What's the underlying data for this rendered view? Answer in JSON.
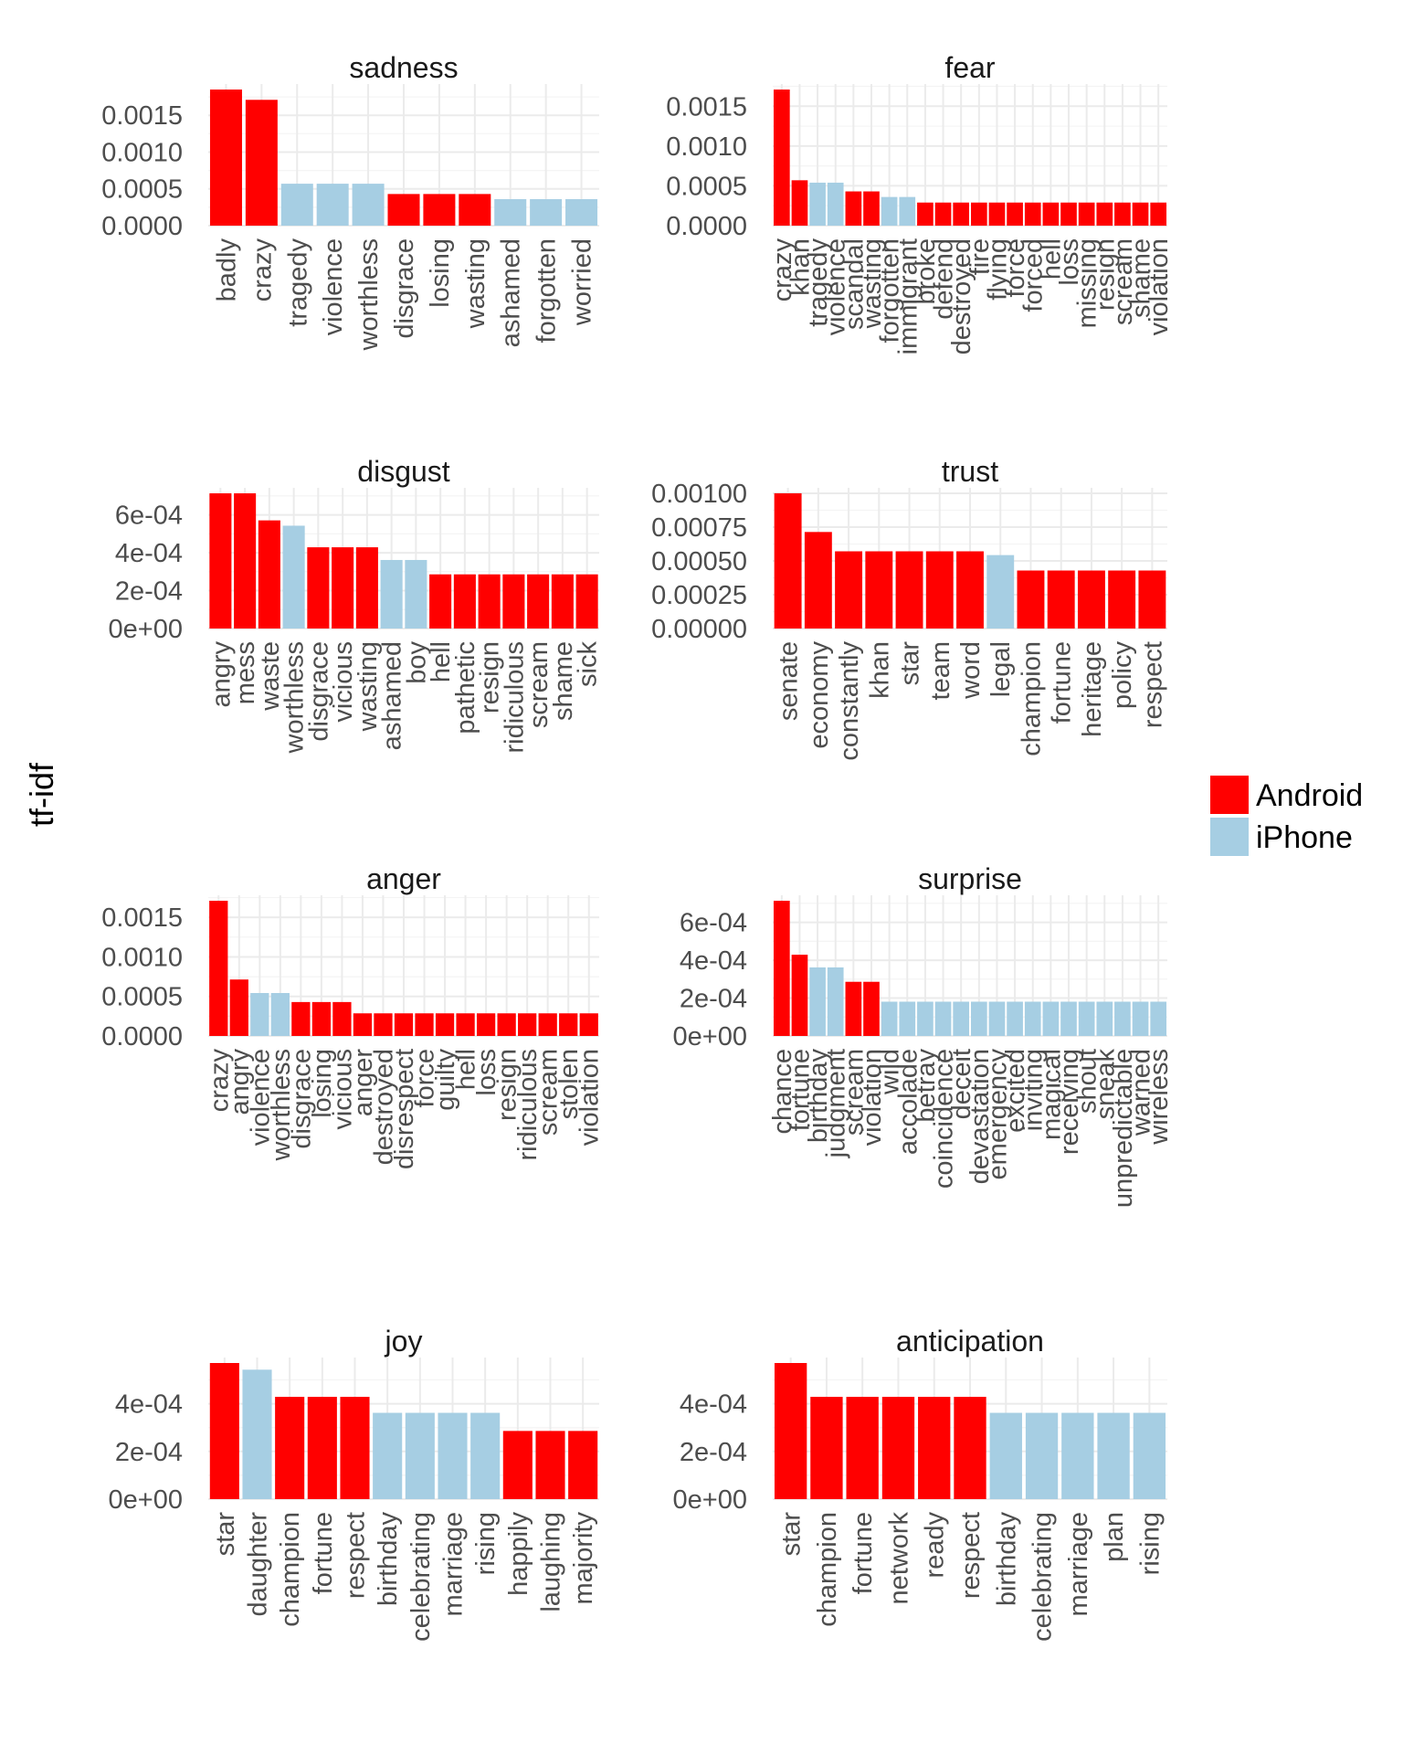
{
  "chart_data": {
    "type": "bar",
    "ylabel": "tf-idf",
    "xlabel": "",
    "legend": {
      "placement": "right",
      "entries": [
        {
          "name": "Android",
          "color": "#ff0000"
        },
        {
          "name": "iPhone",
          "color": "#a6cee3"
        }
      ]
    },
    "grid": true,
    "facets": [
      {
        "title": "sadness",
        "ylim": [
          0,
          0.00185
        ],
        "yticks": [
          0,
          0.0005,
          0.001,
          0.0015
        ],
        "yticklabels": [
          "0.0000",
          "0.0005",
          "0.0010",
          "0.0015"
        ],
        "categories": [
          "badly",
          "crazy",
          "tragedy",
          "violence",
          "worthless",
          "disgrace",
          "losing",
          "wasting",
          "ashamed",
          "forgotten",
          "worried"
        ],
        "values": [
          0.00185,
          0.00171,
          0.00057,
          0.00057,
          0.00057,
          0.00043,
          0.00043,
          0.00043,
          0.00036,
          0.00036,
          0.00036
        ],
        "groups": [
          "Android",
          "Android",
          "iPhone",
          "iPhone",
          "iPhone",
          "Android",
          "Android",
          "Android",
          "iPhone",
          "iPhone",
          "iPhone"
        ]
      },
      {
        "title": "fear",
        "ylim": [
          0,
          0.00171
        ],
        "yticks": [
          0,
          0.0005,
          0.001,
          0.0015
        ],
        "yticklabels": [
          "0.0000",
          "0.0005",
          "0.0010",
          "0.0015"
        ],
        "categories": [
          "crazy",
          "khan",
          "tragedy",
          "violence",
          "scandal",
          "wasting",
          "forgotten",
          "immigrant",
          "broke",
          "defend",
          "destroyed",
          "fire",
          "flying",
          "force",
          "forced",
          "hell",
          "loss",
          "missing",
          "resign",
          "scream",
          "shame",
          "violation"
        ],
        "values": [
          0.00171,
          0.00057,
          0.00054,
          0.00054,
          0.00043,
          0.00043,
          0.00036,
          0.00036,
          0.00029,
          0.00029,
          0.00029,
          0.00029,
          0.00029,
          0.00029,
          0.00029,
          0.00029,
          0.00029,
          0.00029,
          0.00029,
          0.00029,
          0.00029,
          0.00029
        ],
        "groups": [
          "Android",
          "Android",
          "iPhone",
          "iPhone",
          "Android",
          "Android",
          "iPhone",
          "iPhone",
          "Android",
          "Android",
          "Android",
          "Android",
          "Android",
          "Android",
          "Android",
          "Android",
          "Android",
          "Android",
          "Android",
          "Android",
          "Android",
          "Android"
        ]
      },
      {
        "title": "disgust",
        "ylim": [
          0,
          0.000714
        ],
        "yticks": [
          0,
          0.0002,
          0.0004,
          0.0006
        ],
        "yticklabels": [
          "0e+00",
          "2e-04",
          "4e-04",
          "6e-04"
        ],
        "categories": [
          "angry",
          "mess",
          "waste",
          "worthless",
          "disgrace",
          "vicious",
          "wasting",
          "ashamed",
          "boy",
          "hell",
          "pathetic",
          "resign",
          "ridiculous",
          "scream",
          "shame",
          "sick"
        ],
        "values": [
          0.000714,
          0.000714,
          0.000571,
          0.000543,
          0.000429,
          0.000429,
          0.000429,
          0.000362,
          0.000362,
          0.000286,
          0.000286,
          0.000286,
          0.000286,
          0.000286,
          0.000286,
          0.000286
        ],
        "groups": [
          "Android",
          "Android",
          "Android",
          "iPhone",
          "Android",
          "Android",
          "Android",
          "iPhone",
          "iPhone",
          "Android",
          "Android",
          "Android",
          "Android",
          "Android",
          "Android",
          "Android"
        ]
      },
      {
        "title": "trust",
        "ylim": [
          0,
          0.001
        ],
        "yticks": [
          0,
          0.00025,
          0.0005,
          0.00075,
          0.001
        ],
        "yticklabels": [
          "0.00000",
          "0.00025",
          "0.00050",
          "0.00075",
          "0.00100"
        ],
        "categories": [
          "senate",
          "economy",
          "constantly",
          "khan",
          "star",
          "team",
          "word",
          "legal",
          "champion",
          "fortune",
          "heritage",
          "policy",
          "respect"
        ],
        "values": [
          0.001,
          0.000714,
          0.000571,
          0.000571,
          0.000571,
          0.000571,
          0.000571,
          0.000543,
          0.000429,
          0.000429,
          0.000429,
          0.000429,
          0.000429
        ],
        "groups": [
          "Android",
          "Android",
          "Android",
          "Android",
          "Android",
          "Android",
          "Android",
          "iPhone",
          "Android",
          "Android",
          "Android",
          "Android",
          "Android"
        ]
      },
      {
        "title": "anger",
        "ylim": [
          0,
          0.00171
        ],
        "yticks": [
          0,
          0.0005,
          0.001,
          0.0015
        ],
        "yticklabels": [
          "0.0000",
          "0.0005",
          "0.0010",
          "0.0015"
        ],
        "categories": [
          "crazy",
          "angry",
          "violence",
          "worthless",
          "disgrace",
          "losing",
          "vicious",
          "anger",
          "destroyed",
          "disrespect",
          "force",
          "guilty",
          "hell",
          "loss",
          "resign",
          "ridiculous",
          "scream",
          "stolen",
          "violation"
        ],
        "values": [
          0.00171,
          0.000714,
          0.000543,
          0.000543,
          0.000429,
          0.000429,
          0.000429,
          0.000286,
          0.000286,
          0.000286,
          0.000286,
          0.000286,
          0.000286,
          0.000286,
          0.000286,
          0.000286,
          0.000286,
          0.000286,
          0.000286
        ],
        "groups": [
          "Android",
          "Android",
          "iPhone",
          "iPhone",
          "Android",
          "Android",
          "Android",
          "Android",
          "Android",
          "Android",
          "Android",
          "Android",
          "Android",
          "Android",
          "Android",
          "Android",
          "Android",
          "Android",
          "Android"
        ]
      },
      {
        "title": "surprise",
        "ylim": [
          0,
          0.000714
        ],
        "yticks": [
          0,
          0.0002,
          0.0004,
          0.0006
        ],
        "yticklabels": [
          "0e+00",
          "2e-04",
          "4e-04",
          "6e-04"
        ],
        "categories": [
          "chance",
          "fortune",
          "birthday",
          "judgment",
          "scream",
          "violation",
          "wild",
          "accolade",
          "betray",
          "coincidence",
          "deceit",
          "devastation",
          "emergency",
          "excited",
          "inviting",
          "magical",
          "receiving",
          "shout",
          "sneak",
          "unpredictable",
          "warned",
          "wireless"
        ],
        "values": [
          0.000714,
          0.000429,
          0.000362,
          0.000362,
          0.000286,
          0.000286,
          0.000181,
          0.000181,
          0.000181,
          0.000181,
          0.000181,
          0.000181,
          0.000181,
          0.000181,
          0.000181,
          0.000181,
          0.000181,
          0.000181,
          0.000181,
          0.000181,
          0.000181,
          0.000181
        ],
        "groups": [
          "Android",
          "Android",
          "iPhone",
          "iPhone",
          "Android",
          "Android",
          "iPhone",
          "iPhone",
          "iPhone",
          "iPhone",
          "iPhone",
          "iPhone",
          "iPhone",
          "iPhone",
          "iPhone",
          "iPhone",
          "iPhone",
          "iPhone",
          "iPhone",
          "iPhone",
          "iPhone",
          "iPhone"
        ]
      },
      {
        "title": "joy",
        "ylim": [
          0,
          0.000571
        ],
        "yticks": [
          0,
          0.0002,
          0.0004
        ],
        "yticklabels": [
          "0e+00",
          "2e-04",
          "4e-04"
        ],
        "categories": [
          "star",
          "daughter",
          "champion",
          "fortune",
          "respect",
          "birthday",
          "celebrating",
          "marriage",
          "rising",
          "happily",
          "laughing",
          "majority"
        ],
        "values": [
          0.000571,
          0.000543,
          0.000429,
          0.000429,
          0.000429,
          0.000362,
          0.000362,
          0.000362,
          0.000362,
          0.000286,
          0.000286,
          0.000286
        ],
        "groups": [
          "Android",
          "iPhone",
          "Android",
          "Android",
          "Android",
          "iPhone",
          "iPhone",
          "iPhone",
          "iPhone",
          "Android",
          "Android",
          "Android"
        ]
      },
      {
        "title": "anticipation",
        "ylim": [
          0,
          0.000571
        ],
        "yticks": [
          0,
          0.0002,
          0.0004
        ],
        "yticklabels": [
          "0e+00",
          "2e-04",
          "4e-04"
        ],
        "categories": [
          "star",
          "champion",
          "fortune",
          "network",
          "ready",
          "respect",
          "birthday",
          "celebrating",
          "marriage",
          "plan",
          "rising"
        ],
        "values": [
          0.000571,
          0.000429,
          0.000429,
          0.000429,
          0.000429,
          0.000429,
          0.000362,
          0.000362,
          0.000362,
          0.000362,
          0.000362
        ],
        "groups": [
          "Android",
          "Android",
          "Android",
          "Android",
          "Android",
          "Android",
          "iPhone",
          "iPhone",
          "iPhone",
          "iPhone",
          "iPhone"
        ]
      }
    ]
  }
}
